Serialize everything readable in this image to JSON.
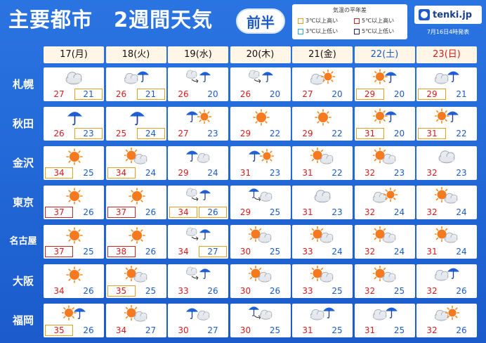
{
  "header": {
    "title": "主要都市　2週間天気",
    "half_label": "前半",
    "issued": "7月16日4時発表",
    "logo_text": "tenki.jp"
  },
  "legend": {
    "title": "気温の平年差",
    "items": [
      {
        "label": "3℃以上高い",
        "color": "#e8a020"
      },
      {
        "label": "5℃以上高い",
        "color": "#c62828"
      },
      {
        "label": "3℃以上低い",
        "color": "#29a9d8"
      },
      {
        "label": "5℃以上低い",
        "color": "#1a237e"
      }
    ]
  },
  "dates": [
    {
      "label": "17(月)",
      "kind": "weekday"
    },
    {
      "label": "18(火)",
      "kind": "weekday"
    },
    {
      "label": "19(水)",
      "kind": "weekday"
    },
    {
      "label": "20(木)",
      "kind": "weekday"
    },
    {
      "label": "21(金)",
      "kind": "weekday"
    },
    {
      "label": "22(土)",
      "kind": "sat"
    },
    {
      "label": "23(日)",
      "kind": "sun"
    }
  ],
  "cities": [
    {
      "name": "札幌",
      "days": [
        {
          "icon": "cloud-icon",
          "max": "27",
          "min": "21",
          "max_b": "",
          "min_b": "o"
        },
        {
          "icon": "cloud-rain-icon",
          "max": "26",
          "min": "21",
          "max_b": "",
          "min_b": "o"
        },
        {
          "icon": "cloud-then-rain-icon",
          "max": "26",
          "min": "20",
          "max_b": "",
          "min_b": ""
        },
        {
          "icon": "cloud-then-rain-icon",
          "max": "26",
          "min": "20",
          "max_b": "",
          "min_b": ""
        },
        {
          "icon": "cloud-sun-icon",
          "max": "27",
          "min": "20",
          "max_b": "",
          "min_b": ""
        },
        {
          "icon": "sun-rain-icon",
          "max": "29",
          "min": "20",
          "max_b": "o",
          "min_b": ""
        },
        {
          "icon": "cloud-rain-icon",
          "max": "29",
          "min": "21",
          "max_b": "o",
          "min_b": ""
        }
      ]
    },
    {
      "name": "秋田",
      "days": [
        {
          "icon": "rain-icon",
          "max": "26",
          "min": "23",
          "max_b": "",
          "min_b": "o"
        },
        {
          "icon": "rain-icon",
          "max": "25",
          "min": "24",
          "max_b": "",
          "min_b": "o"
        },
        {
          "icon": "rain-sun-icon",
          "max": "27",
          "min": "23",
          "max_b": "",
          "min_b": ""
        },
        {
          "icon": "sun-icon",
          "max": "29",
          "min": "22",
          "max_b": "",
          "min_b": ""
        },
        {
          "icon": "sun-icon",
          "max": "29",
          "min": "22",
          "max_b": "",
          "min_b": ""
        },
        {
          "icon": "sun-rain-icon",
          "max": "31",
          "min": "20",
          "max_b": "o",
          "min_b": ""
        },
        {
          "icon": "sun-rain-icon",
          "max": "31",
          "min": "22",
          "max_b": "o",
          "min_b": ""
        }
      ]
    },
    {
      "name": "金沢",
      "days": [
        {
          "icon": "sun-icon",
          "max": "34",
          "min": "25",
          "max_b": "o",
          "min_b": ""
        },
        {
          "icon": "sun-cloud-icon",
          "max": "34",
          "min": "24",
          "max_b": "o",
          "min_b": ""
        },
        {
          "icon": "rain-cloud-icon",
          "max": "29",
          "min": "24",
          "max_b": "",
          "min_b": ""
        },
        {
          "icon": "rain-sun-icon",
          "max": "31",
          "min": "23",
          "max_b": "",
          "min_b": ""
        },
        {
          "icon": "sun-cloud-icon",
          "max": "31",
          "min": "22",
          "max_b": "",
          "min_b": ""
        },
        {
          "icon": "sun-cloud-icon",
          "max": "32",
          "min": "23",
          "max_b": "",
          "min_b": ""
        },
        {
          "icon": "cloud-icon",
          "max": "32",
          "min": "23",
          "max_b": "",
          "min_b": ""
        }
      ]
    },
    {
      "name": "東京",
      "days": [
        {
          "icon": "sun-icon",
          "max": "37",
          "min": "26",
          "max_b": "r",
          "min_b": ""
        },
        {
          "icon": "sun-icon",
          "max": "37",
          "min": "26",
          "max_b": "r",
          "min_b": ""
        },
        {
          "icon": "cloud-then-rain-icon",
          "max": "34",
          "min": "26",
          "max_b": "o",
          "min_b": "o"
        },
        {
          "icon": "rain-then-cloud-icon",
          "max": "29",
          "min": "25",
          "max_b": "",
          "min_b": ""
        },
        {
          "icon": "cloud-icon",
          "max": "31",
          "min": "23",
          "max_b": "",
          "min_b": ""
        },
        {
          "icon": "cloud-sun-icon",
          "max": "32",
          "min": "24",
          "max_b": "",
          "min_b": ""
        },
        {
          "icon": "sun-cloud-icon",
          "max": "32",
          "min": "24",
          "max_b": "",
          "min_b": ""
        }
      ]
    },
    {
      "name": "名古屋",
      "days": [
        {
          "icon": "sun-icon",
          "max": "37",
          "min": "25",
          "max_b": "r",
          "min_b": ""
        },
        {
          "icon": "sun-icon",
          "max": "38",
          "min": "26",
          "max_b": "r",
          "min_b": ""
        },
        {
          "icon": "cloud-then-rain-icon",
          "max": "34",
          "min": "27",
          "max_b": "",
          "min_b": "o"
        },
        {
          "icon": "sun-cloud-icon",
          "max": "30",
          "min": "25",
          "max_b": "",
          "min_b": ""
        },
        {
          "icon": "sun-cloud-icon",
          "max": "33",
          "min": "24",
          "max_b": "",
          "min_b": ""
        },
        {
          "icon": "sun-cloud-icon",
          "max": "32",
          "min": "24",
          "max_b": "",
          "min_b": ""
        },
        {
          "icon": "sun-cloud-icon",
          "max": "31",
          "min": "24",
          "max_b": "",
          "min_b": ""
        }
      ]
    },
    {
      "name": "大阪",
      "days": [
        {
          "icon": "sun-icon",
          "max": "34",
          "min": "26",
          "max_b": "",
          "min_b": ""
        },
        {
          "icon": "sun-cloud-icon",
          "max": "35",
          "min": "25",
          "max_b": "o",
          "min_b": ""
        },
        {
          "icon": "cloud-then-rain-icon",
          "max": "33",
          "min": "26",
          "max_b": "",
          "min_b": ""
        },
        {
          "icon": "sun-cloud-icon",
          "max": "30",
          "min": "26",
          "max_b": "",
          "min_b": ""
        },
        {
          "icon": "sun-cloud-icon",
          "max": "33",
          "min": "25",
          "max_b": "",
          "min_b": ""
        },
        {
          "icon": "sun-cloud-icon",
          "max": "32",
          "min": "25",
          "max_b": "",
          "min_b": ""
        },
        {
          "icon": "cloud-rain-icon",
          "max": "32",
          "min": "26",
          "max_b": "",
          "min_b": ""
        }
      ]
    },
    {
      "name": "福岡",
      "days": [
        {
          "icon": "sun-rain-icon",
          "max": "35",
          "min": "26",
          "max_b": "o",
          "min_b": ""
        },
        {
          "icon": "sun-cloud-icon",
          "max": "34",
          "min": "27",
          "max_b": "",
          "min_b": ""
        },
        {
          "icon": "rain-cloud-icon",
          "max": "30",
          "min": "27",
          "max_b": "",
          "min_b": ""
        },
        {
          "icon": "rain-then-cloud-icon",
          "max": "30",
          "min": "25",
          "max_b": "",
          "min_b": ""
        },
        {
          "icon": "cloud-rain-icon",
          "max": "31",
          "min": "25",
          "max_b": "",
          "min_b": ""
        },
        {
          "icon": "cloud-rain-icon",
          "max": "31",
          "min": "25",
          "max_b": "",
          "min_b": ""
        },
        {
          "icon": "cloud-sun-icon",
          "max": "32",
          "min": "26",
          "max_b": "",
          "min_b": ""
        }
      ]
    }
  ]
}
